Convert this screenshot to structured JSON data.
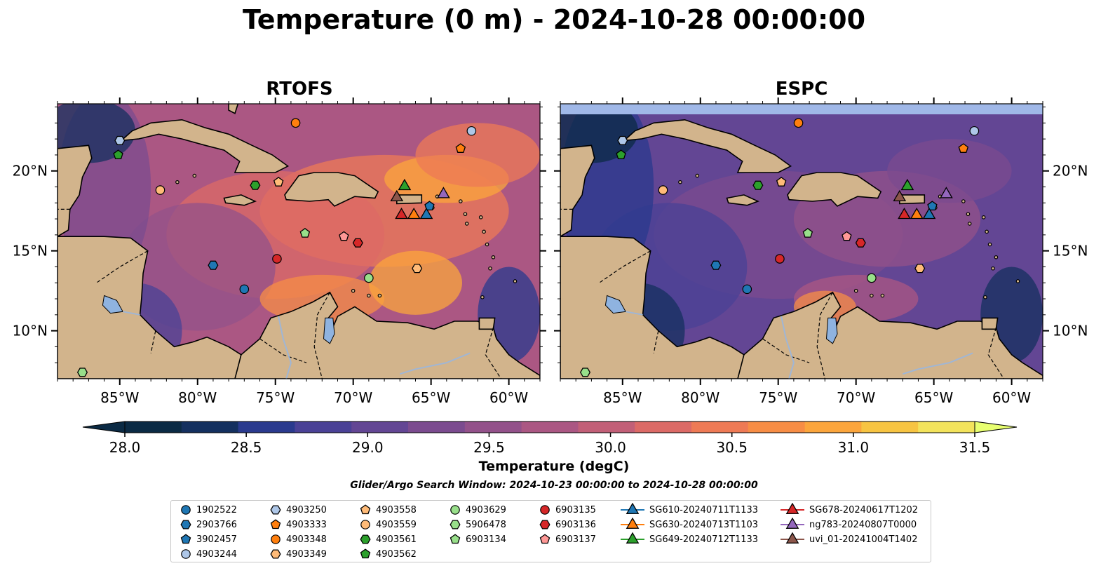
{
  "title": "Temperature (0 m) - 2024-10-28 00:00:00",
  "panels": [
    {
      "title": "RTOFS",
      "tint": "warm"
    },
    {
      "title": "ESPC",
      "tint": "cool"
    }
  ],
  "map": {
    "lon_range": [
      -89,
      -58
    ],
    "lat_range": [
      7,
      24.2
    ],
    "lon_ticks": [
      {
        "value": -85,
        "label": "85°W"
      },
      {
        "value": -80,
        "label": "80°W"
      },
      {
        "value": -75,
        "label": "75°W"
      },
      {
        "value": -70,
        "label": "70°W"
      },
      {
        "value": -65,
        "label": "65°W"
      },
      {
        "value": -60,
        "label": "60°W"
      }
    ],
    "lat_ticks": [
      {
        "value": 20,
        "label": "20°N"
      },
      {
        "value": 15,
        "label": "15°N"
      },
      {
        "value": 10,
        "label": "10°N"
      }
    ],
    "land_color": "#d2b48c",
    "lake_color": "#8fb3e0",
    "espc_top_missing_band_color": "#a0b8e8"
  },
  "colorbar": {
    "label": "Temperature (degC)",
    "min": 28.0,
    "max": 31.5,
    "step": 0.25,
    "ticks": [
      "28.0",
      "28.5",
      "29.0",
      "29.5",
      "30.0",
      "30.5",
      "31.0",
      "31.5"
    ],
    "colors": [
      "#0b2a44",
      "#14305f",
      "#2a3a8e",
      "#4a4196",
      "#634694",
      "#7b4b8f",
      "#93518a",
      "#ab5783",
      "#c25f77",
      "#dc6a66",
      "#ee7a55",
      "#f78d45",
      "#fba53c",
      "#f7c442",
      "#f3e35c"
    ],
    "extend_color": "#e8ff70"
  },
  "search_window": "Glider/Argo Search Window: 2024-10-23 00:00:00 to 2024-10-28 00:00:00",
  "markers": [
    {
      "id": "1902522",
      "lon": -77.0,
      "lat": 12.6,
      "color": "#1f77b4",
      "shape": "circle"
    },
    {
      "id": "2903766",
      "lon": -79.0,
      "lat": 14.1,
      "color": "#1f77b4",
      "shape": "hexagon"
    },
    {
      "id": "3902457",
      "lon": -65.1,
      "lat": 17.8,
      "color": "#1f77b4",
      "shape": "pentagon"
    },
    {
      "id": "4903244",
      "lon": -62.4,
      "lat": 22.5,
      "color": "#aec7e8",
      "shape": "circle"
    },
    {
      "id": "4903250",
      "lon": -85.0,
      "lat": 21.9,
      "color": "#aec7e8",
      "shape": "hexagon"
    },
    {
      "id": "4903333",
      "lon": -63.1,
      "lat": 21.4,
      "color": "#ff7f0e",
      "shape": "pentagon"
    },
    {
      "id": "4903348",
      "lon": -73.7,
      "lat": 23.0,
      "color": "#ff7f0e",
      "shape": "circle"
    },
    {
      "id": "4903349",
      "lon": -65.9,
      "lat": 13.9,
      "color": "#ffbb78",
      "shape": "hexagon"
    },
    {
      "id": "4903558",
      "lon": -74.8,
      "lat": 19.3,
      "color": "#ffbb78",
      "shape": "pentagon"
    },
    {
      "id": "4903559",
      "lon": -82.4,
      "lat": 18.8,
      "color": "#ffbb78",
      "shape": "circle"
    },
    {
      "id": "4903561",
      "lon": -76.3,
      "lat": 19.1,
      "color": "#2ca02c",
      "shape": "hexagon"
    },
    {
      "id": "4903562",
      "lon": -85.1,
      "lat": 21.0,
      "color": "#2ca02c",
      "shape": "pentagon"
    },
    {
      "id": "4903629",
      "lon": -69.0,
      "lat": 13.3,
      "color": "#98df8a",
      "shape": "circle"
    },
    {
      "id": "5906478",
      "lon": -87.4,
      "lat": 7.4,
      "color": "#98df8a",
      "shape": "hexagon"
    },
    {
      "id": "6903134",
      "lon": -73.1,
      "lat": 16.1,
      "color": "#98df8a",
      "shape": "pentagon"
    },
    {
      "id": "6903135",
      "lon": -74.9,
      "lat": 14.5,
      "color": "#d62728",
      "shape": "circle"
    },
    {
      "id": "6903136",
      "lon": -69.7,
      "lat": 15.5,
      "color": "#d62728",
      "shape": "hexagon"
    },
    {
      "id": "6903137",
      "lon": -70.6,
      "lat": 15.9,
      "color": "#ff9896",
      "shape": "pentagon"
    },
    {
      "id": "SG610-20240711T1133",
      "lon": -65.3,
      "lat": 17.3,
      "color": "#1f77b4",
      "shape": "triangle"
    },
    {
      "id": "SG630-20240713T1103",
      "lon": -66.1,
      "lat": 17.3,
      "color": "#ff7f0e",
      "shape": "triangle"
    },
    {
      "id": "SG649-20240712T1133",
      "lon": -66.7,
      "lat": 19.1,
      "color": "#2ca02c",
      "shape": "triangle"
    },
    {
      "id": "SG678-20240617T1202",
      "lon": -66.9,
      "lat": 17.3,
      "color": "#d62728",
      "shape": "triangle"
    },
    {
      "id": "ng783-20240807T0000",
      "lon": -64.2,
      "lat": 18.6,
      "color": "#9467bd",
      "shape": "triangle"
    },
    {
      "id": "uvi_01-20241004T1402",
      "lon": -67.2,
      "lat": 18.4,
      "color": "#8c564b",
      "shape": "triangle"
    }
  ]
}
